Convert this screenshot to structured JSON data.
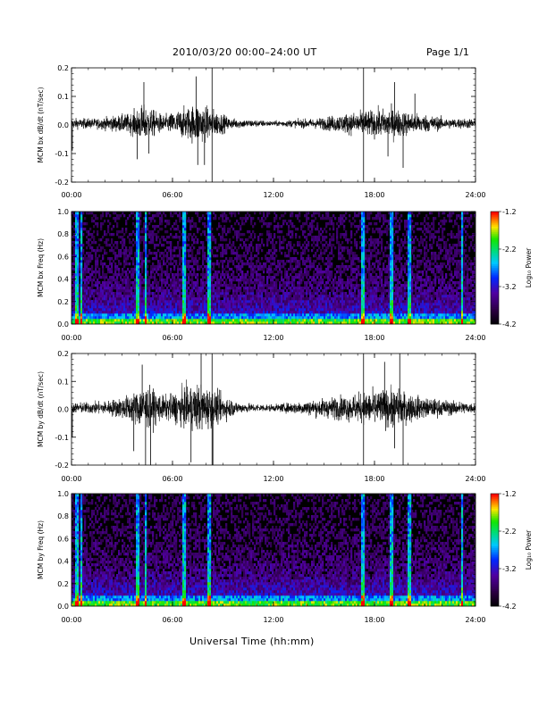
{
  "header": {
    "title": "2010/03/20  00:00–24:00 UT",
    "page": "Page 1/1"
  },
  "footer": {
    "xaxis_title": "Universal Time (hh:mm)"
  },
  "chart_data": [
    {
      "type": "line",
      "ylabel": "MCM bx dB/dt (nT/sec)",
      "xlim": [
        0,
        24
      ],
      "ylim": [
        -0.2,
        0.2
      ],
      "yticks": [
        "-0.2",
        "-0.1",
        "0.0",
        "0.1",
        "0.2"
      ],
      "xticks": [
        "00:00",
        "06:00",
        "12:00",
        "18:00",
        "24:00"
      ],
      "vertical_lines_hours": [
        8.35,
        17.35
      ],
      "activity_envelope": [
        {
          "hour": 0,
          "amp": 0.03
        },
        {
          "hour": 1.5,
          "amp": 0.03
        },
        {
          "hour": 3.5,
          "amp": 0.06
        },
        {
          "hour": 4.2,
          "amp": 0.11
        },
        {
          "hour": 5.5,
          "amp": 0.05
        },
        {
          "hour": 7.5,
          "amp": 0.12
        },
        {
          "hour": 8.3,
          "amp": 0.09
        },
        {
          "hour": 9.5,
          "amp": 0.03
        },
        {
          "hour": 12,
          "amp": 0.015
        },
        {
          "hour": 14.5,
          "amp": 0.03
        },
        {
          "hour": 17,
          "amp": 0.07
        },
        {
          "hour": 19,
          "amp": 0.09
        },
        {
          "hour": 20.5,
          "amp": 0.06
        },
        {
          "hour": 22.5,
          "amp": 0.03
        },
        {
          "hour": 24,
          "amp": 0.03
        }
      ],
      "spikes": [
        {
          "hour": 0.05,
          "value": -0.09
        },
        {
          "hour": 3.9,
          "value": -0.12
        },
        {
          "hour": 4.3,
          "value": 0.15
        },
        {
          "hour": 4.6,
          "value": -0.1
        },
        {
          "hour": 7.4,
          "value": 0.17
        },
        {
          "hour": 7.5,
          "value": -0.14
        },
        {
          "hour": 7.9,
          "value": -0.14
        },
        {
          "hour": 18.8,
          "value": -0.11
        },
        {
          "hour": 19.7,
          "value": -0.15
        },
        {
          "hour": 19.2,
          "value": 0.15
        },
        {
          "hour": 20.4,
          "value": 0.11
        }
      ]
    },
    {
      "type": "heatmap",
      "ylabel": "MCM bx Freq (Hz)",
      "xlim": [
        0,
        24
      ],
      "ylim": [
        0,
        1.0
      ],
      "yticks": [
        "0.0",
        "0.2",
        "0.4",
        "0.6",
        "0.8",
        "1.0"
      ],
      "xticks": [
        "00:00",
        "06:00",
        "12:00",
        "18:00",
        "24:00"
      ],
      "colorbar": {
        "label": "Log₁₀ Power",
        "ticks": [
          "-1.2",
          "-2.2",
          "-3.2",
          "-4.2"
        ],
        "range": [
          -4.2,
          -1.2
        ]
      },
      "bright_columns_hours": [
        0.35,
        0.6,
        3.9,
        4.4,
        6.7,
        8.2,
        17.3,
        19.0,
        20.1,
        23.2
      ]
    },
    {
      "type": "line",
      "ylabel": "MCM by dB/dt (nT/sec)",
      "xlim": [
        0,
        24
      ],
      "ylim": [
        -0.2,
        0.2
      ],
      "yticks": [
        "-0.2",
        "-0.1",
        "0.0",
        "0.1",
        "0.2"
      ],
      "xticks": [
        "00:00",
        "06:00",
        "12:00",
        "18:00",
        "24:00"
      ],
      "vertical_lines_hours": [
        8.35,
        17.35
      ],
      "activity_envelope": [
        {
          "hour": 0,
          "amp": 0.03
        },
        {
          "hour": 2,
          "amp": 0.04
        },
        {
          "hour": 3.5,
          "amp": 0.08
        },
        {
          "hour": 4.3,
          "amp": 0.14
        },
        {
          "hour": 5.5,
          "amp": 0.07
        },
        {
          "hour": 7.5,
          "amp": 0.15
        },
        {
          "hour": 8.4,
          "amp": 0.11
        },
        {
          "hour": 10,
          "amp": 0.03
        },
        {
          "hour": 12,
          "amp": 0.02
        },
        {
          "hour": 14.5,
          "amp": 0.05
        },
        {
          "hour": 16.5,
          "amp": 0.08
        },
        {
          "hour": 19,
          "amp": 0.12
        },
        {
          "hour": 21,
          "amp": 0.06
        },
        {
          "hour": 24,
          "amp": 0.03
        }
      ],
      "spikes": [
        {
          "hour": 0.05,
          "value": -0.1
        },
        {
          "hour": 3.7,
          "value": -0.15
        },
        {
          "hour": 4.2,
          "value": 0.16
        },
        {
          "hour": 4.4,
          "value": -0.2
        },
        {
          "hour": 4.7,
          "value": -0.2
        },
        {
          "hour": 7.1,
          "value": -0.19
        },
        {
          "hour": 7.7,
          "value": 0.2
        },
        {
          "hour": 8.4,
          "value": -0.2
        },
        {
          "hour": 18.6,
          "value": 0.17
        },
        {
          "hour": 19.2,
          "value": -0.14
        },
        {
          "hour": 19.7,
          "value": -0.2
        },
        {
          "hour": 19.5,
          "value": 0.2
        }
      ]
    },
    {
      "type": "heatmap",
      "ylabel": "MCM by Freq (Hz)",
      "xlim": [
        0,
        24
      ],
      "ylim": [
        0,
        1.0
      ],
      "yticks": [
        "0.0",
        "0.2",
        "0.4",
        "0.6",
        "0.8",
        "1.0"
      ],
      "xticks": [
        "00:00",
        "06:00",
        "12:00",
        "18:00",
        "24:00"
      ],
      "colorbar": {
        "label": "Log₁₀ Power",
        "ticks": [
          "-1.2",
          "-2.2",
          "-3.2",
          "-4.2"
        ],
        "range": [
          -4.2,
          -1.2
        ]
      },
      "bright_columns_hours": [
        0.35,
        0.6,
        3.9,
        4.4,
        6.7,
        8.2,
        17.3,
        19.0,
        20.1,
        23.2
      ]
    }
  ]
}
